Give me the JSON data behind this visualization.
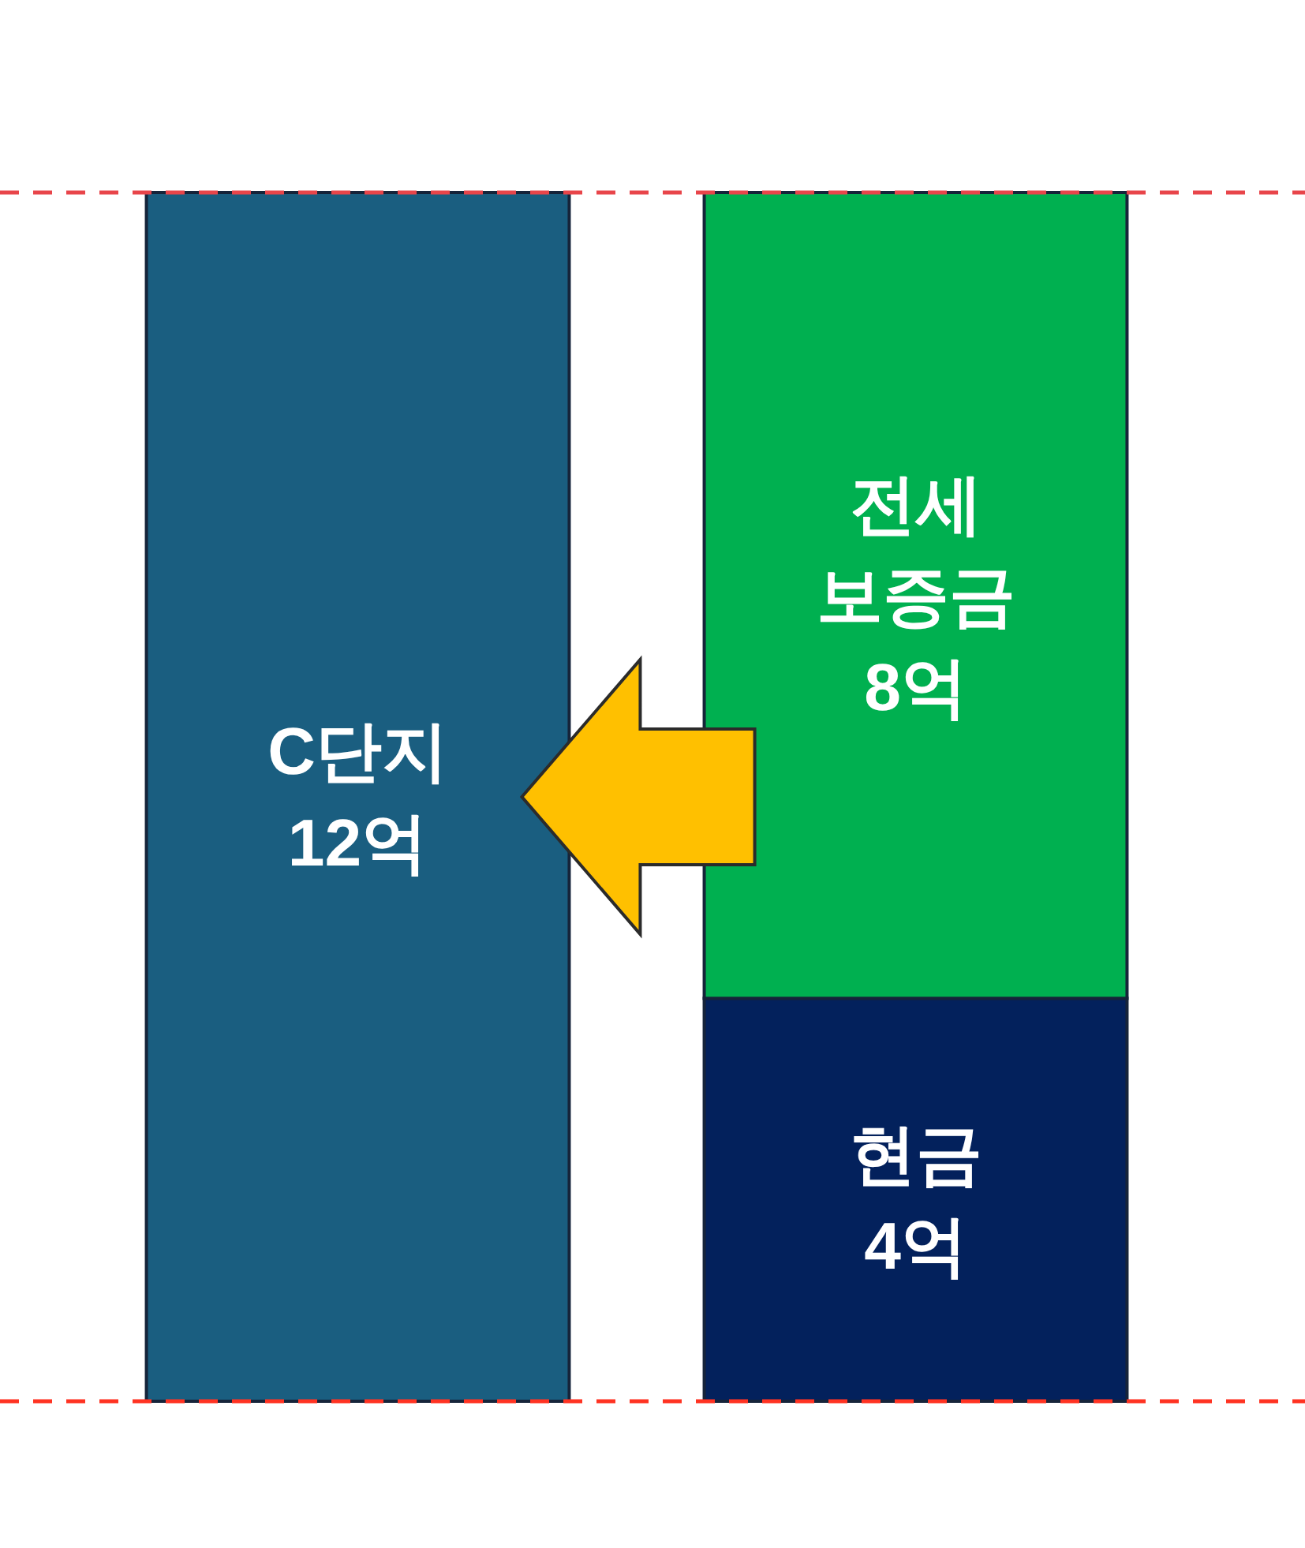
{
  "chart_data": {
    "type": "bar",
    "stacked": true,
    "categories": [
      null,
      null
    ],
    "series": [
      {
        "name": "C단지",
        "color": "#1a5e80",
        "values": [
          12,
          null
        ],
        "value_labels": [
          "12억",
          null
        ]
      },
      {
        "name": "현금",
        "color": "#03215c",
        "values": [
          null,
          4
        ],
        "value_labels": [
          null,
          "4억"
        ]
      },
      {
        "name": "전세 보증금",
        "color": "#00b050",
        "values": [
          null,
          8
        ],
        "value_labels": [
          null,
          "8억"
        ]
      }
    ],
    "ref_lines": [
      {
        "axis": "y",
        "value": 12,
        "color": "#e8454a",
        "line_style": "dashed"
      },
      {
        "axis": "y",
        "value": 0,
        "color": "#ff3322",
        "line_style": "dashed"
      }
    ]
  }
}
